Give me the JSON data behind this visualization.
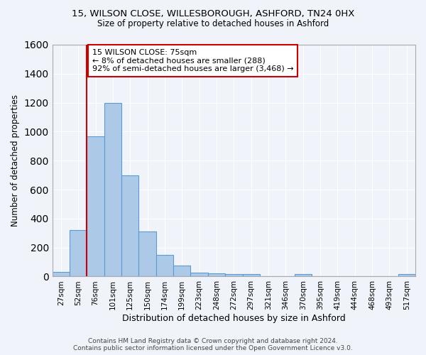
{
  "title1": "15, WILSON CLOSE, WILLESBOROUGH, ASHFORD, TN24 0HX",
  "title2": "Size of property relative to detached houses in Ashford",
  "xlabel": "Distribution of detached houses by size in Ashford",
  "ylabel": "Number of detached properties",
  "footer1": "Contains HM Land Registry data © Crown copyright and database right 2024.",
  "footer2": "Contains public sector information licensed under the Open Government Licence v3.0.",
  "annotation_title": "15 WILSON CLOSE: 75sqm",
  "annotation_line1": "← 8% of detached houses are smaller (288)",
  "annotation_line2": "92% of semi-detached houses are larger (3,468) →",
  "bar_color": "#adc9e8",
  "bar_edge_color": "#5b9bd5",
  "marker_line_color": "#cc0000",
  "annotation_box_color": "#cc0000",
  "bg_color": "#f0f4fa",
  "grid_color": "#ffffff",
  "categories": [
    "27sqm",
    "52sqm",
    "76sqm",
    "101sqm",
    "125sqm",
    "150sqm",
    "174sqm",
    "199sqm",
    "223sqm",
    "248sqm",
    "272sqm",
    "297sqm",
    "321sqm",
    "346sqm",
    "370sqm",
    "395sqm",
    "419sqm",
    "444sqm",
    "468sqm",
    "493sqm",
    "517sqm"
  ],
  "values": [
    30,
    320,
    970,
    1200,
    700,
    310,
    150,
    75,
    28,
    20,
    15,
    15,
    0,
    0,
    15,
    0,
    0,
    0,
    0,
    0,
    15
  ],
  "marker_bin_index": 2,
  "ylim": [
    0,
    1600
  ],
  "yticks": [
    0,
    200,
    400,
    600,
    800,
    1000,
    1200,
    1400,
    1600
  ]
}
